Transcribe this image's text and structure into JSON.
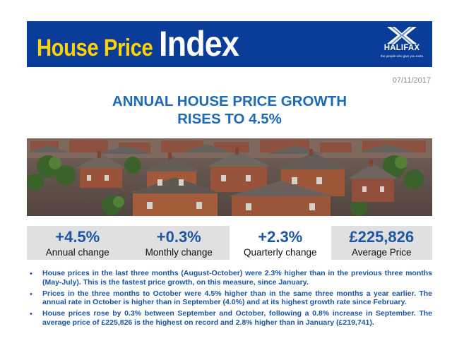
{
  "header": {
    "title_small": "House Price",
    "title_big": "Index",
    "logo_text": "HALIFAX",
    "logo_tagline": "the people who give you extra",
    "colors": {
      "banner": "#0a3c99",
      "title_small": "#ffd200",
      "title_big": "#ffffff"
    }
  },
  "date": "07/11/2017",
  "headline": {
    "line1": "ANNUAL HOUSE PRICE GROWTH",
    "line2": "RISES TO 4.5%",
    "color": "#1c6ab8"
  },
  "photo": {
    "subject": "aerial-view-of-terraced-houses"
  },
  "stats": [
    {
      "value": "+4.5%",
      "label": "Annual change",
      "shaded": true
    },
    {
      "value": "+0.3%",
      "label": "Monthly change",
      "shaded": true
    },
    {
      "value": "+2.3%",
      "label": "Quarterly change",
      "shaded": false
    },
    {
      "value": "£225,826",
      "label": "Average Price",
      "shaded": true
    }
  ],
  "bullets": [
    "House prices in the last three months (August-October) were 2.3% higher than in the previous three months (May-July).  This is the fastest price growth, on this measure, since January.",
    "Prices in the three months to October were 4.5% higher than in the same three months a year earlier. The annual rate in October is higher than in September (4.0%) and at its highest growth rate since February.",
    "House prices rose by 0.3% between September and October, following a 0.8% increase in September. The average price of £225,826 is the highest on record and 2.8% higher than in January (£219,741)."
  ],
  "bullet_symbol": "•"
}
